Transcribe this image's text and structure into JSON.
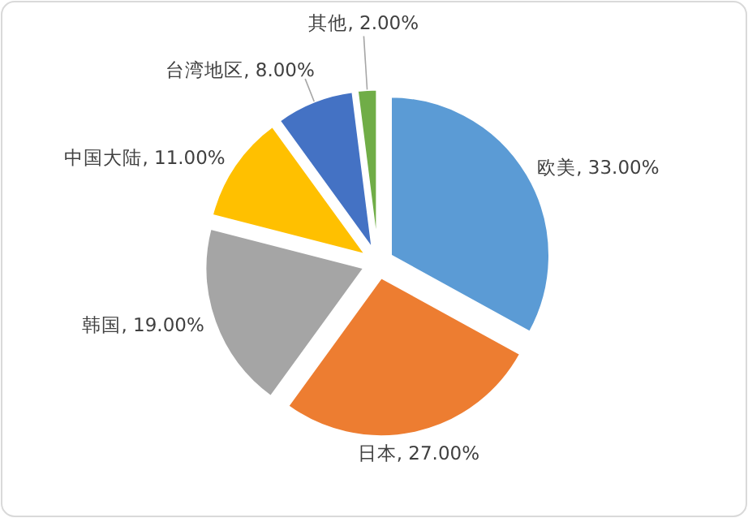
{
  "chart_data": {
    "type": "pie",
    "categories": [
      "欧美",
      "日本",
      "韩国",
      "中国大陆",
      "台湾地区",
      "其他"
    ],
    "values": [
      33,
      27,
      19,
      11,
      8,
      2
    ],
    "colors": [
      "#5b9bd5",
      "#ed7d31",
      "#a5a5a5",
      "#ffc000",
      "#4472c4",
      "#70ad47"
    ],
    "value_labels": [
      "33.00%",
      "27.00%",
      "19.00%",
      "11.00%",
      "8.00%",
      "2.00%"
    ],
    "legend": false
  }
}
